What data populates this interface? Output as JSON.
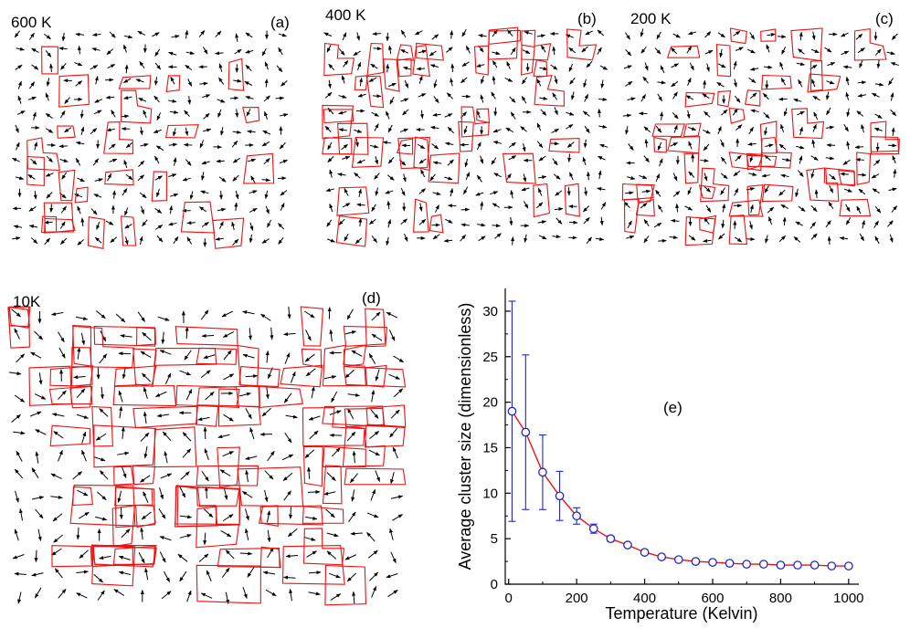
{
  "panels": [
    {
      "id": "a",
      "temperature_label": "600 K",
      "letter": "(a)",
      "cluster_density": 0.3,
      "seed": 11
    },
    {
      "id": "b",
      "temperature_label": "400 K",
      "letter": "(b)",
      "cluster_density": 0.45,
      "seed": 23
    },
    {
      "id": "c",
      "temperature_label": "200 K",
      "letter": "(c)",
      "cluster_density": 0.55,
      "seed": 37
    },
    {
      "id": "d",
      "temperature_label": "10K",
      "letter": "(d)",
      "cluster_density": 0.9,
      "seed": 53
    }
  ],
  "chart_data": {
    "type": "scatter",
    "panel_letter": "(e)",
    "xlabel": "Temperature (Kelvin)",
    "ylabel": "Average cluster size (dimensionless)",
    "xlim": [
      -10,
      1030
    ],
    "ylim": [
      0,
      32.5
    ],
    "xticks": [
      0,
      200,
      400,
      600,
      800,
      1000
    ],
    "yticks": [
      0,
      5,
      10,
      15,
      20,
      25,
      30
    ],
    "grid": false,
    "colors": {
      "points": "#2222cc",
      "error_bars": "#2222cc",
      "fit_line": "#ee1111"
    },
    "series": [
      {
        "x": [
          10,
          50,
          100,
          150,
          200,
          250,
          300,
          350,
          400,
          450,
          500,
          550,
          600,
          650,
          700,
          750,
          800,
          850,
          900,
          950,
          1000
        ],
        "y": [
          19.0,
          16.7,
          12.3,
          9.7,
          7.5,
          6.1,
          5.0,
          4.3,
          3.5,
          3.0,
          2.7,
          2.5,
          2.4,
          2.3,
          2.2,
          2.2,
          2.1,
          2.1,
          2.1,
          2.0,
          2.0
        ],
        "yerr": [
          12.1,
          8.5,
          4.1,
          2.7,
          0.9,
          0.5,
          0.3,
          0.2,
          0.2,
          0.15,
          0.1,
          0.1,
          0.1,
          0.1,
          0.1,
          0.1,
          0.1,
          0.1,
          0.1,
          0.1,
          0.1
        ]
      }
    ]
  }
}
